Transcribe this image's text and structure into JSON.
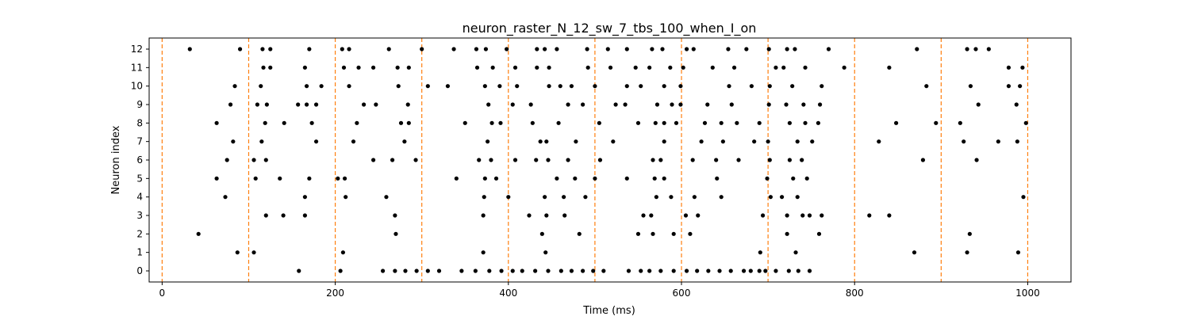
{
  "chart_data": {
    "type": "scatter",
    "title": "neuron_raster_N_12_sw_7_tbs_100_when_I_on",
    "xlabel": "Time (ms)",
    "ylabel": "Neuron index",
    "xlim": [
      -15,
      1050
    ],
    "ylim": [
      -0.6,
      12.6
    ],
    "x_ticks": [
      0,
      200,
      400,
      600,
      800,
      1000
    ],
    "y_ticks": [
      0,
      1,
      2,
      3,
      4,
      5,
      6,
      7,
      8,
      9,
      10,
      11,
      12
    ],
    "vlines": [
      0,
      100,
      200,
      300,
      400,
      500,
      600,
      700,
      800,
      900,
      1000
    ],
    "vline_color": "#ff7f0e",
    "point_color": "#000000",
    "series": [
      {
        "neuron": 12,
        "times": [
          32,
          90,
          116,
          125,
          170,
          208,
          216,
          262,
          300,
          337,
          363,
          374,
          398,
          433,
          442,
          456,
          491,
          515,
          537,
          566,
          578,
          606,
          614,
          654,
          675,
          701,
          722,
          731,
          770,
          872,
          930,
          940,
          955
        ]
      },
      {
        "neuron": 11,
        "times": [
          117,
          125,
          165,
          210,
          227,
          244,
          272,
          285,
          364,
          382,
          408,
          433,
          447,
          492,
          518,
          547,
          563,
          587,
          602,
          636,
          661,
          709,
          718,
          743,
          788,
          840,
          978,
          994
        ]
      },
      {
        "neuron": 10,
        "times": [
          84,
          114,
          167,
          184,
          216,
          273,
          307,
          330,
          373,
          390,
          410,
          447,
          460,
          473,
          500,
          537,
          553,
          580,
          599,
          655,
          681,
          702,
          728,
          762,
          883,
          934,
          978,
          991
        ]
      },
      {
        "neuron": 9,
        "times": [
          79,
          110,
          121,
          157,
          167,
          178,
          233,
          247,
          284,
          377,
          405,
          426,
          469,
          486,
          524,
          535,
          572,
          589,
          599,
          630,
          658,
          701,
          721,
          741,
          760,
          943,
          987
        ]
      },
      {
        "neuron": 8,
        "times": [
          63,
          119,
          141,
          173,
          225,
          276,
          285,
          350,
          381,
          391,
          428,
          458,
          505,
          550,
          570,
          580,
          594,
          627,
          646,
          664,
          690,
          725,
          743,
          758,
          848,
          894,
          922,
          998
        ]
      },
      {
        "neuron": 7,
        "times": [
          82,
          115,
          178,
          221,
          280,
          376,
          437,
          444,
          478,
          521,
          580,
          623,
          648,
          684,
          700,
          734,
          751,
          828,
          926,
          966,
          988
        ]
      },
      {
        "neuron": 6,
        "times": [
          75,
          106,
          120,
          244,
          266,
          293,
          366,
          380,
          408,
          432,
          446,
          469,
          506,
          567,
          576,
          613,
          640,
          666,
          702,
          725,
          739,
          879,
          941
        ]
      },
      {
        "neuron": 5,
        "times": [
          63,
          108,
          136,
          170,
          203,
          211,
          340,
          373,
          386,
          456,
          477,
          500,
          537,
          569,
          580,
          641,
          699,
          729,
          745
        ]
      },
      {
        "neuron": 4,
        "times": [
          73,
          165,
          212,
          259,
          372,
          400,
          442,
          464,
          489,
          571,
          588,
          615,
          646,
          703,
          716,
          734,
          995
        ]
      },
      {
        "neuron": 3,
        "times": [
          120,
          140,
          165,
          269,
          371,
          424,
          444,
          465,
          556,
          565,
          605,
          619,
          694,
          722,
          740,
          748,
          762,
          817,
          840
        ]
      },
      {
        "neuron": 2,
        "times": [
          42,
          270,
          439,
          482,
          550,
          567,
          591,
          610,
          722,
          759,
          933
        ]
      },
      {
        "neuron": 1,
        "times": [
          87,
          106,
          209,
          371,
          443,
          691,
          732,
          869,
          930,
          989
        ]
      },
      {
        "neuron": 0,
        "times": [
          158,
          206,
          255,
          269,
          281,
          294,
          307,
          320,
          346,
          362,
          378,
          392,
          405,
          416,
          431,
          446,
          461,
          473,
          486,
          498,
          510,
          539,
          553,
          563,
          576,
          591,
          606,
          618,
          631,
          644,
          657,
          672,
          680,
          690,
          697,
          709,
          724,
          735,
          748
        ]
      }
    ]
  }
}
